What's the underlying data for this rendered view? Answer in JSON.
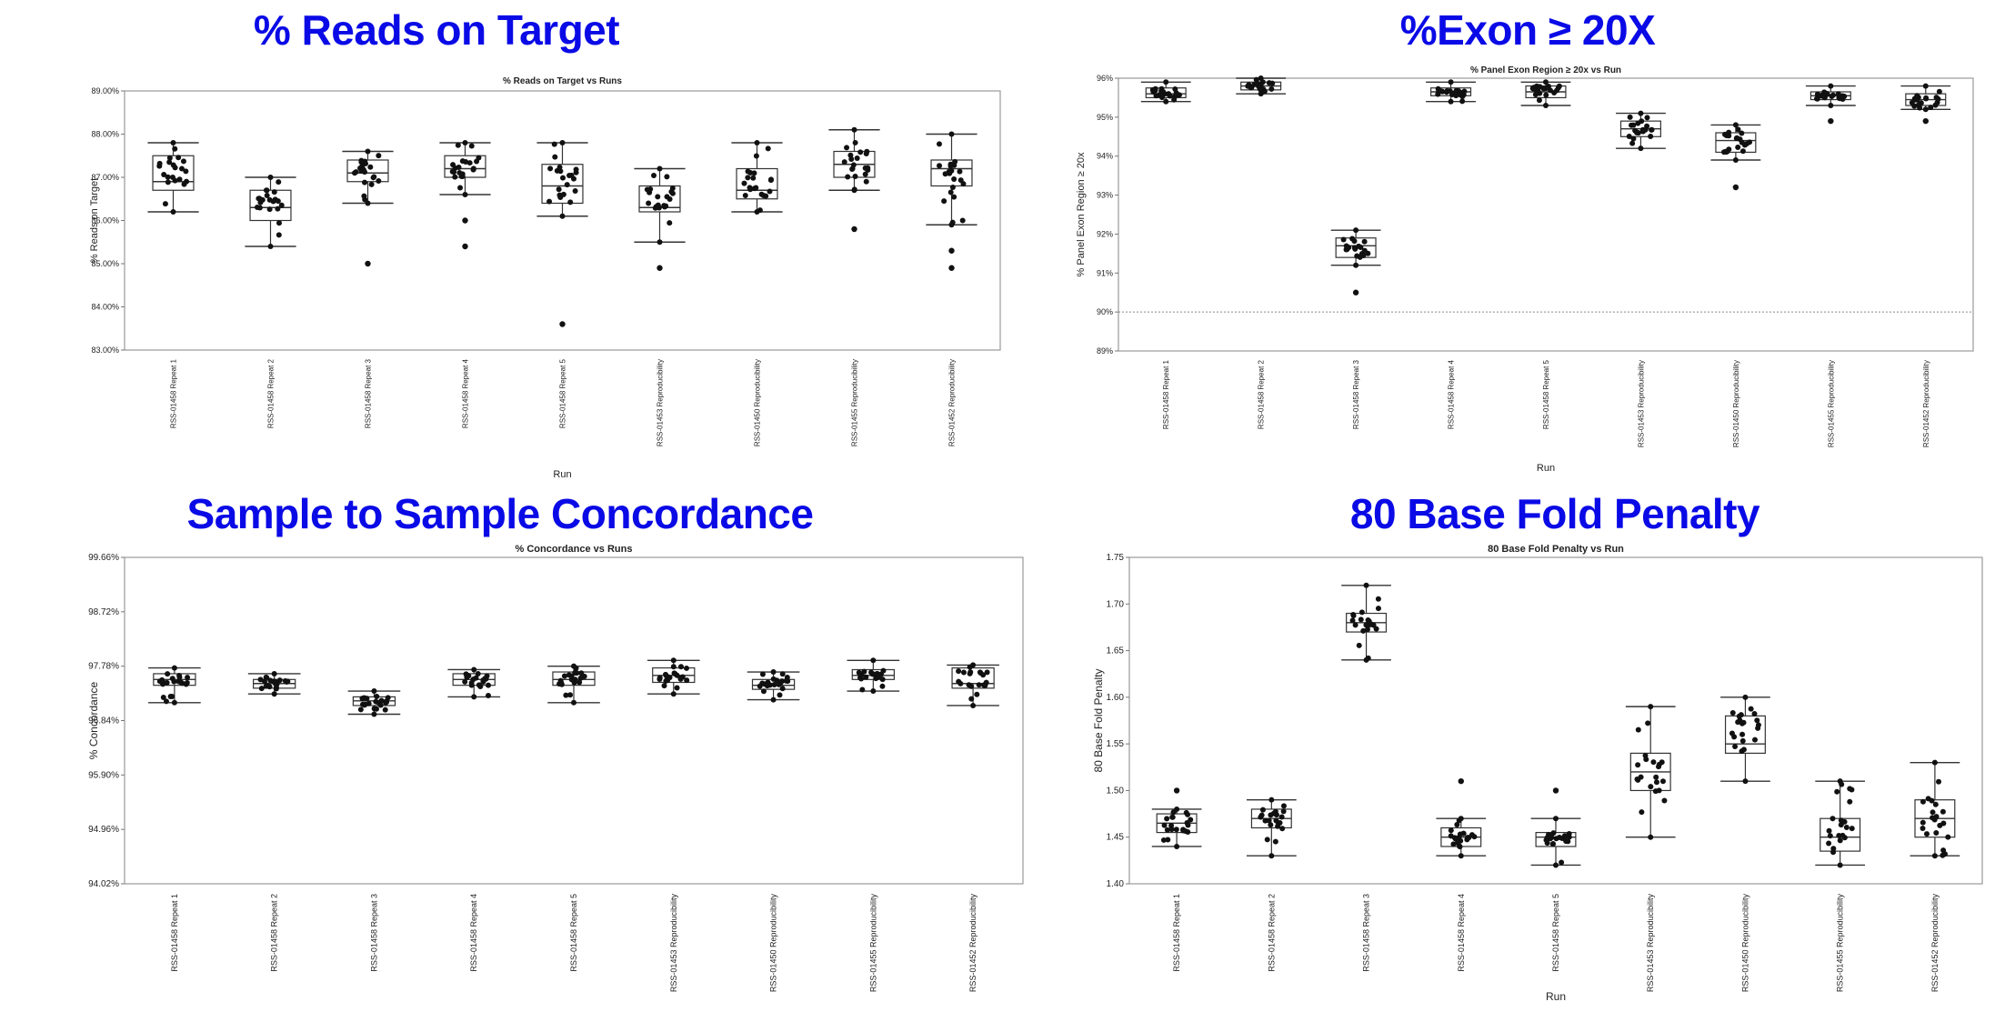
{
  "headings": [
    "% Reads on Target",
    "%Exon ≥ 20X",
    "Sample to Sample Concordance",
    "80 Base Fold Penalty"
  ],
  "chart_data": [
    {
      "type": "box",
      "title": "% Reads on Target vs Runs",
      "xlabel": "Run",
      "ylabel": "% Reads on Target",
      "ylim": [
        83.0,
        89.0
      ],
      "yticks": [
        "83.00%",
        "84.00%",
        "85.00%",
        "86.00%",
        "87.00%",
        "88.00%",
        "89.00%"
      ],
      "categories": [
        "RSS-01458 Repeat 1",
        "RSS-01458 Repeat 2",
        "RSS-01458 Repeat 3",
        "RSS-01458 Repeat 4",
        "RSS-01458 Repeat 5",
        "RSS-01453 Reproducibility",
        "RSS-01450 Reproducibility",
        "RSS-01455 Reproducibility",
        "RSS-01452 Reproducibility"
      ],
      "boxes": [
        {
          "whisker_low": 86.2,
          "q1": 86.7,
          "median": 86.9,
          "q3": 87.5,
          "whisker_high": 87.8,
          "outliers": []
        },
        {
          "whisker_low": 85.4,
          "q1": 86.0,
          "median": 86.3,
          "q3": 86.7,
          "whisker_high": 87.0,
          "outliers": []
        },
        {
          "whisker_low": 86.4,
          "q1": 86.9,
          "median": 87.1,
          "q3": 87.4,
          "whisker_high": 87.6,
          "outliers": [
            85.0
          ]
        },
        {
          "whisker_low": 86.6,
          "q1": 87.0,
          "median": 87.2,
          "q3": 87.5,
          "whisker_high": 87.8,
          "outliers": [
            86.0,
            85.4
          ]
        },
        {
          "whisker_low": 86.1,
          "q1": 86.4,
          "median": 86.8,
          "q3": 87.3,
          "whisker_high": 87.8,
          "outliers": [
            83.6
          ]
        },
        {
          "whisker_low": 85.5,
          "q1": 86.2,
          "median": 86.3,
          "q3": 86.8,
          "whisker_high": 87.2,
          "outliers": [
            84.9
          ]
        },
        {
          "whisker_low": 86.2,
          "q1": 86.5,
          "median": 86.7,
          "q3": 87.2,
          "whisker_high": 87.8,
          "outliers": []
        },
        {
          "whisker_low": 86.7,
          "q1": 87.0,
          "median": 87.3,
          "q3": 87.6,
          "whisker_high": 88.1,
          "outliers": [
            85.8
          ]
        },
        {
          "whisker_low": 85.9,
          "q1": 86.8,
          "median": 87.2,
          "q3": 87.4,
          "whisker_high": 88.0,
          "outliers": [
            85.3,
            84.9
          ]
        }
      ]
    },
    {
      "type": "box",
      "title": "% Panel Exon Region ≥ 20x vs Run",
      "xlabel": "Run",
      "ylabel": "% Panel Exon Region ≥ 20x",
      "ylim": [
        89.0,
        96.0
      ],
      "reference_line": 90.0,
      "yticks": [
        "89%",
        "90%",
        "91%",
        "92%",
        "93%",
        "94%",
        "95%",
        "96%"
      ],
      "categories": [
        "RSS-01458 Repeat 1",
        "RSS-01458 Repeat 2",
        "RSS-01458 Repeat 3",
        "RSS-01458 Repeat 4",
        "RSS-01458 Repeat 5",
        "RSS-01453 Reproducibility",
        "RSS-01450 Reproducibility",
        "RSS-01455 Reproducibility",
        "RSS-01452 Reproducibility"
      ],
      "boxes": [
        {
          "whisker_low": 95.4,
          "q1": 95.5,
          "median": 95.6,
          "q3": 95.75,
          "whisker_high": 95.9,
          "outliers": []
        },
        {
          "whisker_low": 95.6,
          "q1": 95.7,
          "median": 95.8,
          "q3": 95.9,
          "whisker_high": 96.0,
          "outliers": []
        },
        {
          "whisker_low": 91.2,
          "q1": 91.4,
          "median": 91.7,
          "q3": 91.9,
          "whisker_high": 92.1,
          "outliers": [
            90.5
          ]
        },
        {
          "whisker_low": 95.4,
          "q1": 95.55,
          "median": 95.65,
          "q3": 95.75,
          "whisker_high": 95.9,
          "outliers": []
        },
        {
          "whisker_low": 95.3,
          "q1": 95.5,
          "median": 95.65,
          "q3": 95.8,
          "whisker_high": 95.9,
          "outliers": []
        },
        {
          "whisker_low": 94.2,
          "q1": 94.5,
          "median": 94.7,
          "q3": 94.9,
          "whisker_high": 95.1,
          "outliers": []
        },
        {
          "whisker_low": 93.9,
          "q1": 94.1,
          "median": 94.4,
          "q3": 94.6,
          "whisker_high": 94.8,
          "outliers": [
            93.2
          ]
        },
        {
          "whisker_low": 95.3,
          "q1": 95.45,
          "median": 95.55,
          "q3": 95.65,
          "whisker_high": 95.8,
          "outliers": [
            94.9
          ]
        },
        {
          "whisker_low": 95.2,
          "q1": 95.3,
          "median": 95.45,
          "q3": 95.6,
          "whisker_high": 95.8,
          "outliers": [
            94.9
          ]
        }
      ]
    },
    {
      "type": "box",
      "title": "% Concordance vs Runs",
      "xlabel": "",
      "ylabel": "% Concordance",
      "ylim": [
        94.02,
        99.66
      ],
      "yticks": [
        "94.02%",
        "94.96%",
        "95.90%",
        "96.84%",
        "97.78%",
        "98.72%",
        "99.66%"
      ],
      "categories": [
        "RSS-01458 Repeat 1",
        "RSS-01458 Repeat 2",
        "RSS-01458 Repeat 3",
        "RSS-01458 Repeat 4",
        "RSS-01458 Repeat 5",
        "RSS-01453 Reproducibility",
        "RSS-01450 Reproducibility",
        "RSS-01455 Reproducibility",
        "RSS-01452 Reproducibility"
      ],
      "boxes": [
        {
          "whisker_low": 97.15,
          "q1": 97.45,
          "median": 97.55,
          "q3": 97.65,
          "whisker_high": 97.75,
          "outliers": []
        },
        {
          "whisker_low": 97.3,
          "q1": 97.4,
          "median": 97.48,
          "q3": 97.55,
          "whisker_high": 97.65,
          "outliers": []
        },
        {
          "whisker_low": 96.95,
          "q1": 97.1,
          "median": 97.18,
          "q3": 97.25,
          "whisker_high": 97.35,
          "outliers": []
        },
        {
          "whisker_low": 97.25,
          "q1": 97.45,
          "median": 97.55,
          "q3": 97.65,
          "whisker_high": 97.72,
          "outliers": []
        },
        {
          "whisker_low": 97.15,
          "q1": 97.45,
          "median": 97.55,
          "q3": 97.68,
          "whisker_high": 97.78,
          "outliers": []
        },
        {
          "whisker_low": 97.3,
          "q1": 97.5,
          "median": 97.62,
          "q3": 97.75,
          "whisker_high": 97.88,
          "outliers": []
        },
        {
          "whisker_low": 97.2,
          "q1": 97.38,
          "median": 97.45,
          "q3": 97.55,
          "whisker_high": 97.68,
          "outliers": []
        },
        {
          "whisker_low": 97.35,
          "q1": 97.55,
          "median": 97.62,
          "q3": 97.72,
          "whisker_high": 97.88,
          "outliers": []
        },
        {
          "whisker_low": 97.1,
          "q1": 97.4,
          "median": 97.48,
          "q3": 97.75,
          "whisker_high": 97.8,
          "outliers": []
        }
      ]
    },
    {
      "type": "box",
      "title": "80 Base Fold Penalty vs Run",
      "xlabel": "Run",
      "ylabel": "80 Base Fold Penalty",
      "ylim": [
        1.4,
        1.75
      ],
      "yticks": [
        "1.40",
        "1.45",
        "1.50",
        "1.55",
        "1.60",
        "1.65",
        "1.70",
        "1.75"
      ],
      "categories": [
        "RSS-01458 Repeat 1",
        "RSS-01458 Repeat 2",
        "RSS-01458 Repeat 3",
        "RSS-01458 Repeat 4",
        "RSS-01458 Repeat 5",
        "RSS-01453 Reproducibility",
        "RSS-01450 Reproducibility",
        "RSS-01455 Reproducibility",
        "RSS-01452 Reproducibility"
      ],
      "boxes": [
        {
          "whisker_low": 1.44,
          "q1": 1.455,
          "median": 1.465,
          "q3": 1.475,
          "whisker_high": 1.48,
          "outliers": [
            1.5
          ]
        },
        {
          "whisker_low": 1.43,
          "q1": 1.46,
          "median": 1.47,
          "q3": 1.48,
          "whisker_high": 1.49,
          "outliers": []
        },
        {
          "whisker_low": 1.64,
          "q1": 1.67,
          "median": 1.68,
          "q3": 1.69,
          "whisker_high": 1.72,
          "outliers": []
        },
        {
          "whisker_low": 1.43,
          "q1": 1.44,
          "median": 1.45,
          "q3": 1.46,
          "whisker_high": 1.47,
          "outliers": [
            1.51
          ]
        },
        {
          "whisker_low": 1.42,
          "q1": 1.44,
          "median": 1.45,
          "q3": 1.455,
          "whisker_high": 1.47,
          "outliers": [
            1.5
          ]
        },
        {
          "whisker_low": 1.45,
          "q1": 1.5,
          "median": 1.52,
          "q3": 1.54,
          "whisker_high": 1.59,
          "outliers": []
        },
        {
          "whisker_low": 1.51,
          "q1": 1.54,
          "median": 1.55,
          "q3": 1.58,
          "whisker_high": 1.6,
          "outliers": []
        },
        {
          "whisker_low": 1.42,
          "q1": 1.435,
          "median": 1.45,
          "q3": 1.47,
          "whisker_high": 1.51,
          "outliers": []
        },
        {
          "whisker_low": 1.43,
          "q1": 1.45,
          "median": 1.47,
          "q3": 1.49,
          "whisker_high": 1.53,
          "outliers": []
        }
      ]
    }
  ]
}
